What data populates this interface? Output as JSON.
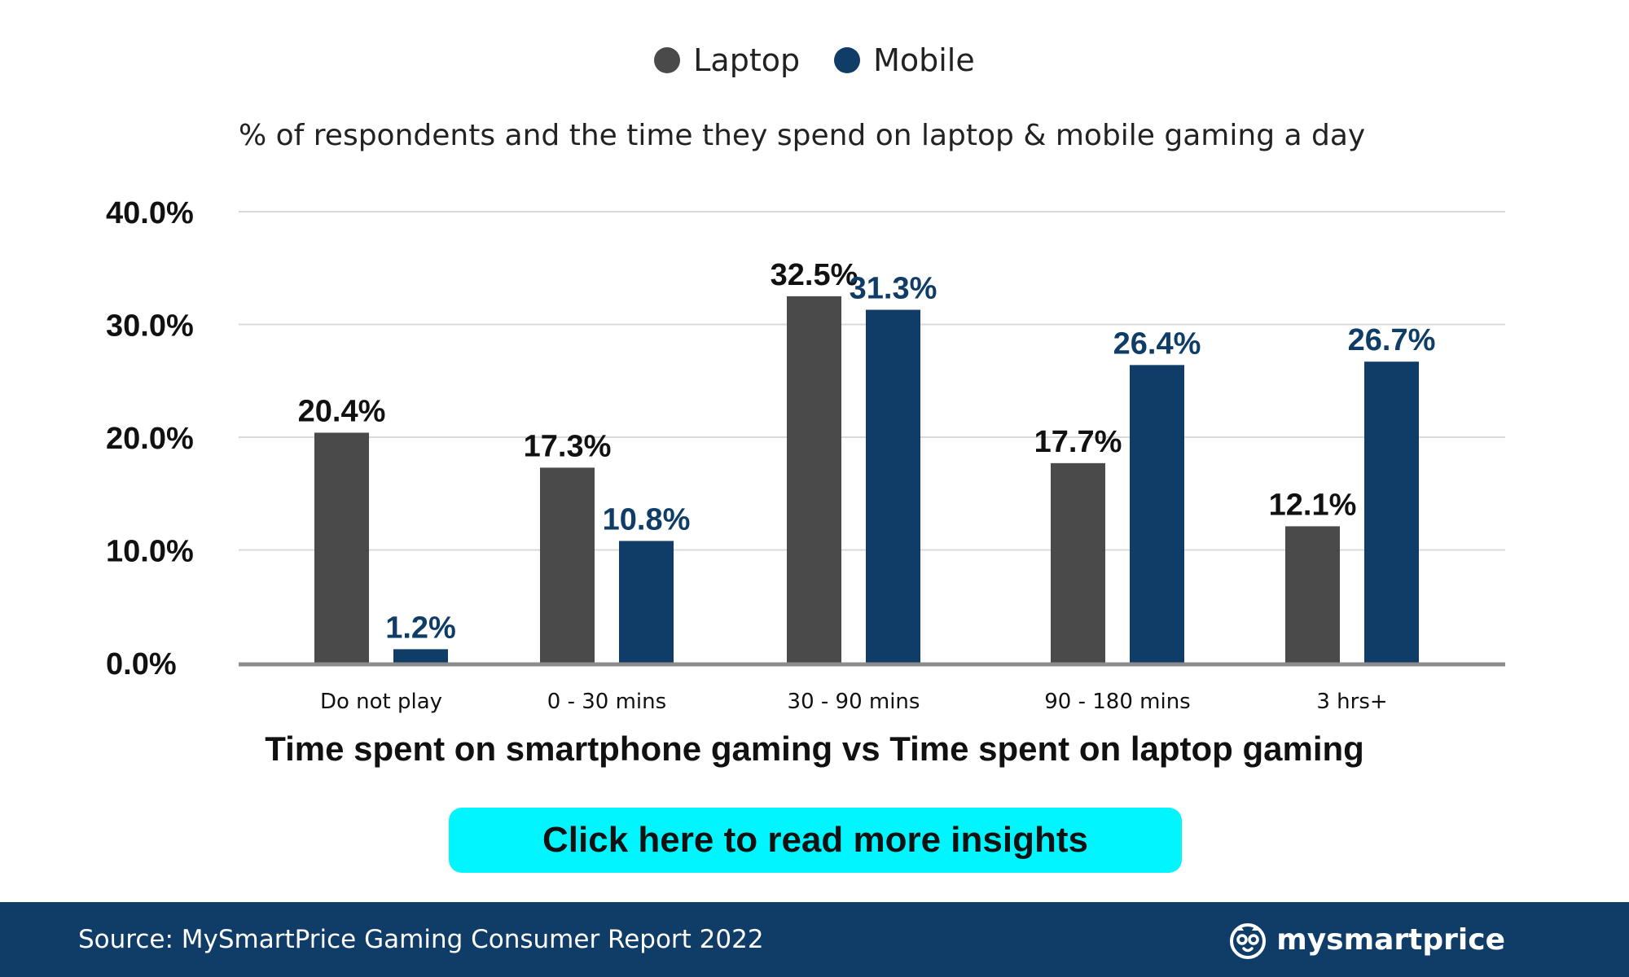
{
  "chart_data": {
    "type": "bar",
    "subtitle": "% of respondents and the time they spend on laptop & mobile gaming a day",
    "xlabel": "Time spent on smartphone gaming vs Time spent on laptop gaming",
    "categories": [
      "Do not play",
      "0 - 30 mins",
      "30 - 90 mins",
      "90 - 180 mins",
      "3 hrs+"
    ],
    "series": [
      {
        "name": "Laptop",
        "color": "#4a4a4a",
        "values": [
          20.4,
          17.3,
          32.5,
          17.7,
          12.1
        ],
        "labels": [
          "20.4%",
          "17.3%",
          "32.5%",
          "17.7%",
          "12.1%"
        ]
      },
      {
        "name": "Mobile",
        "color": "#0f3d67",
        "values": [
          1.2,
          10.8,
          31.3,
          26.4,
          26.7
        ],
        "labels": [
          "1.2%",
          "10.8%",
          "31.3%",
          "26.4%",
          "26.7%"
        ]
      }
    ],
    "yticks": [
      "0.0%",
      "10.0%",
      "20.0%",
      "30.0%",
      "40.0%"
    ],
    "ytick_values": [
      0,
      10,
      20,
      30,
      40
    ],
    "ylim": [
      0,
      40
    ],
    "grid": true,
    "legend_position": "top-center"
  },
  "cta": {
    "label": "Click here to read more insights"
  },
  "footer": {
    "source": "Source: MySmartPrice Gaming Consumer Report 2022",
    "brand": "mysmartprice",
    "logo_icon": "owl-icon"
  }
}
